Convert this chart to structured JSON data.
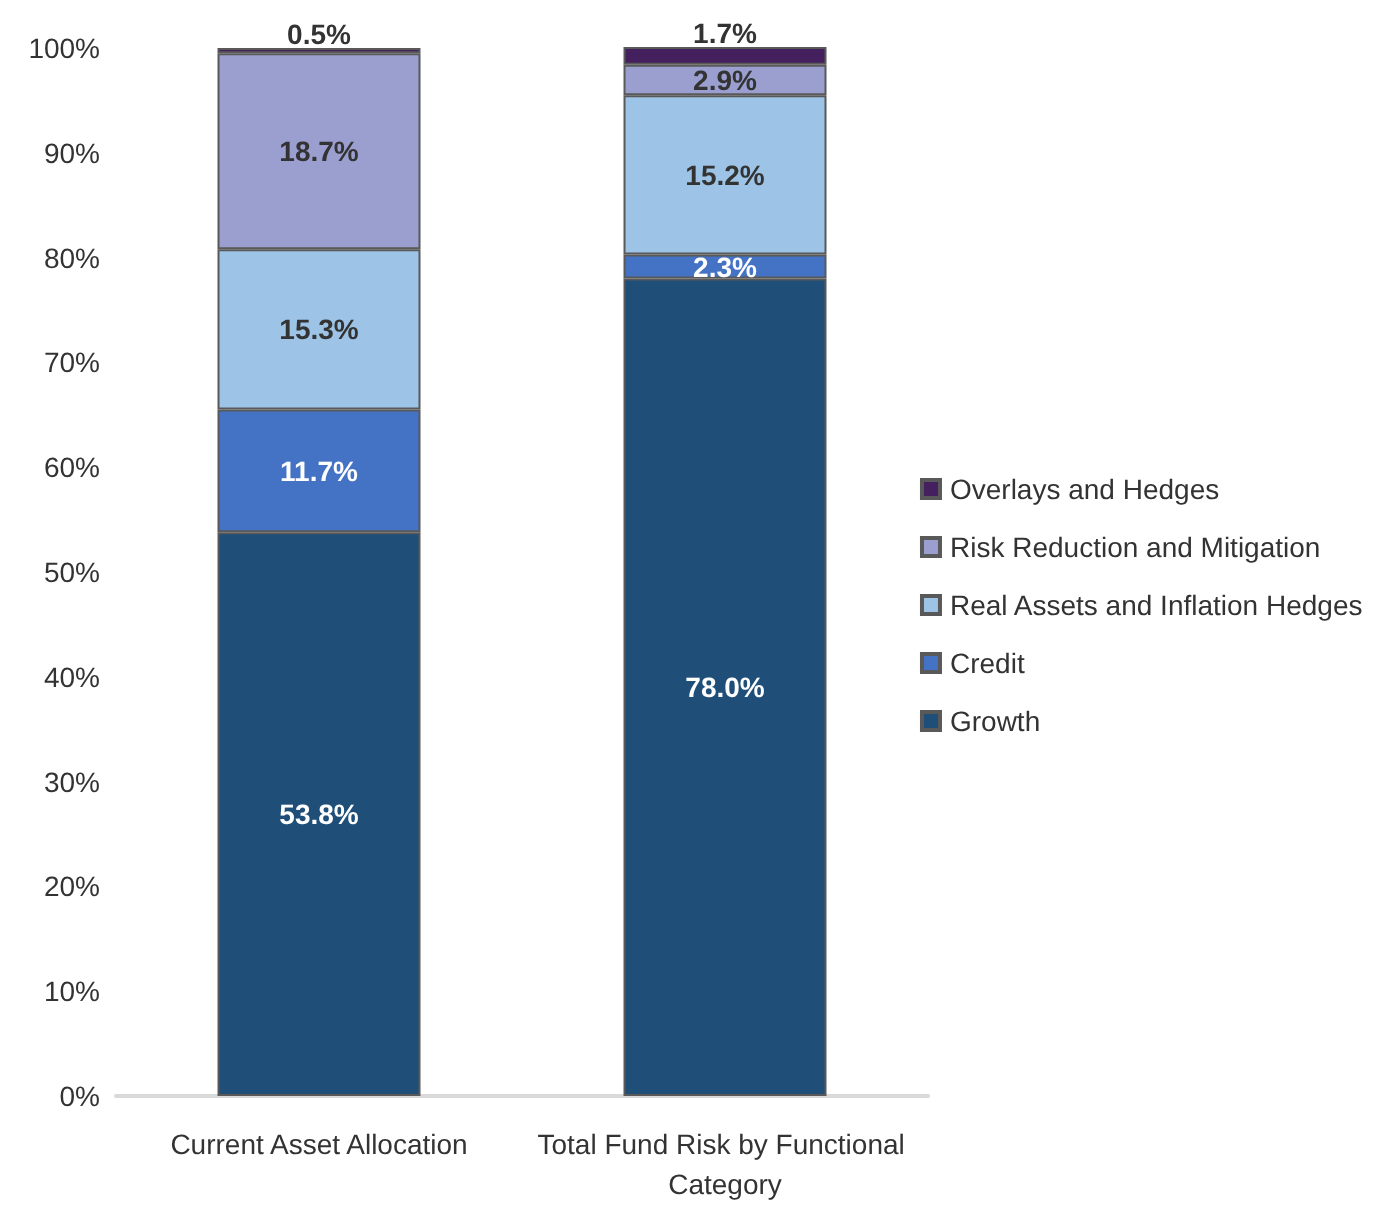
{
  "chart_data": {
    "type": "bar",
    "stacked": true,
    "legend": "right",
    "grid": false,
    "categories": [
      "Current Asset Allocation",
      "Total Fund Risk by Functional Category"
    ],
    "series": [
      {
        "name": "Growth",
        "color": "#1f4e79",
        "values": [
          53.8,
          78.0
        ],
        "value_labels": [
          "53.8%",
          "78.0%"
        ]
      },
      {
        "name": "Credit",
        "color": "#4472c4",
        "values": [
          11.7,
          2.3
        ],
        "value_labels": [
          "11.7%",
          "2.3%"
        ]
      },
      {
        "name": "Real Assets and Inflation Hedges",
        "color": "#9dc3e6",
        "values": [
          15.3,
          15.2
        ],
        "value_labels": [
          "15.3%",
          "15.2%"
        ]
      },
      {
        "name": "Risk Reduction and Mitigation",
        "color": "#9a9fcf",
        "values": [
          18.7,
          2.9
        ],
        "value_labels": [
          "18.7%",
          "2.9%"
        ]
      },
      {
        "name": "Overlays and Hedges",
        "color": "#45205f",
        "values": [
          0.5,
          1.7
        ],
        "value_labels": [
          "0.5%",
          "1.7%"
        ]
      }
    ],
    "ylim": [
      0,
      100
    ],
    "yticks": [
      {
        "value": 0,
        "label": "0%"
      },
      {
        "value": 10,
        "label": "10%"
      },
      {
        "value": 20,
        "label": "20%"
      },
      {
        "value": 30,
        "label": "30%"
      },
      {
        "value": 40,
        "label": "40%"
      },
      {
        "value": 50,
        "label": "50%"
      },
      {
        "value": 60,
        "label": "60%"
      },
      {
        "value": 70,
        "label": "70%"
      },
      {
        "value": 80,
        "label": "80%"
      },
      {
        "value": 90,
        "label": "90%"
      },
      {
        "value": 100,
        "label": "100%"
      }
    ]
  }
}
